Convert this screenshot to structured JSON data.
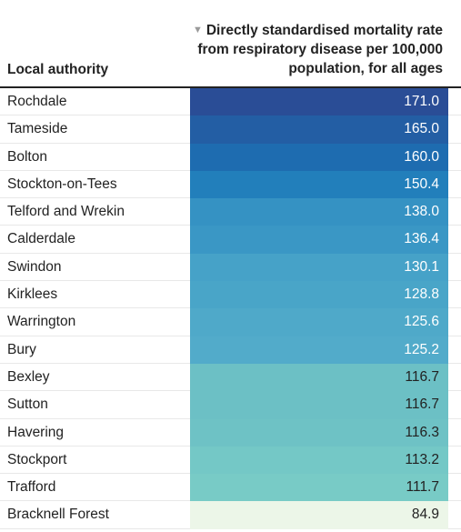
{
  "table": {
    "col1_header": "Local authority",
    "col2_header": "Directly standardised mortality rate from respiratory disease per 100,000 population, for all ages",
    "sort_icon": "▼"
  },
  "chart_data": {
    "type": "table",
    "columns": [
      "Local authority",
      "Directly standardised mortality rate from respiratory disease per 100,000 population, for all ages"
    ],
    "rows": [
      {
        "name": "Rochdale",
        "value": "171.0",
        "color": "#2a4d96",
        "text_color": "#ffffff"
      },
      {
        "name": "Tameside",
        "value": "165.0",
        "color": "#235ea4",
        "text_color": "#ffffff"
      },
      {
        "name": "Bolton",
        "value": "160.0",
        "color": "#1e6cb0",
        "text_color": "#ffffff"
      },
      {
        "name": "Stockton-on-Tees",
        "value": "150.4",
        "color": "#227fbb",
        "text_color": "#ffffff"
      },
      {
        "name": "Telford and Wrekin",
        "value": "138.0",
        "color": "#3592c3",
        "text_color": "#ffffff"
      },
      {
        "name": "Calderdale",
        "value": "136.4",
        "color": "#3a97c5",
        "text_color": "#ffffff"
      },
      {
        "name": "Swindon",
        "value": "130.1",
        "color": "#46a2c8",
        "text_color": "#ffffff"
      },
      {
        "name": "Kirklees",
        "value": "128.8",
        "color": "#49a5c8",
        "text_color": "#ffffff"
      },
      {
        "name": "Warrington",
        "value": "125.6",
        "color": "#4fa9c9",
        "text_color": "#ffffff"
      },
      {
        "name": "Bury",
        "value": "125.2",
        "color": "#52abca",
        "text_color": "#ffffff"
      },
      {
        "name": "Bexley",
        "value": "116.7",
        "color": "#6cc0c5",
        "text_color": "#222222"
      },
      {
        "name": "Sutton",
        "value": "116.7",
        "color": "#6cc0c5",
        "text_color": "#222222"
      },
      {
        "name": "Havering",
        "value": "116.3",
        "color": "#6ec2c5",
        "text_color": "#222222"
      },
      {
        "name": "Stockport",
        "value": "113.2",
        "color": "#74c8c6",
        "text_color": "#222222"
      },
      {
        "name": "Trafford",
        "value": "111.7",
        "color": "#78cbc6",
        "text_color": "#222222"
      },
      {
        "name": "Bracknell Forest",
        "value": "84.9",
        "color": "#ecf6e8",
        "text_color": "#222222"
      }
    ]
  }
}
